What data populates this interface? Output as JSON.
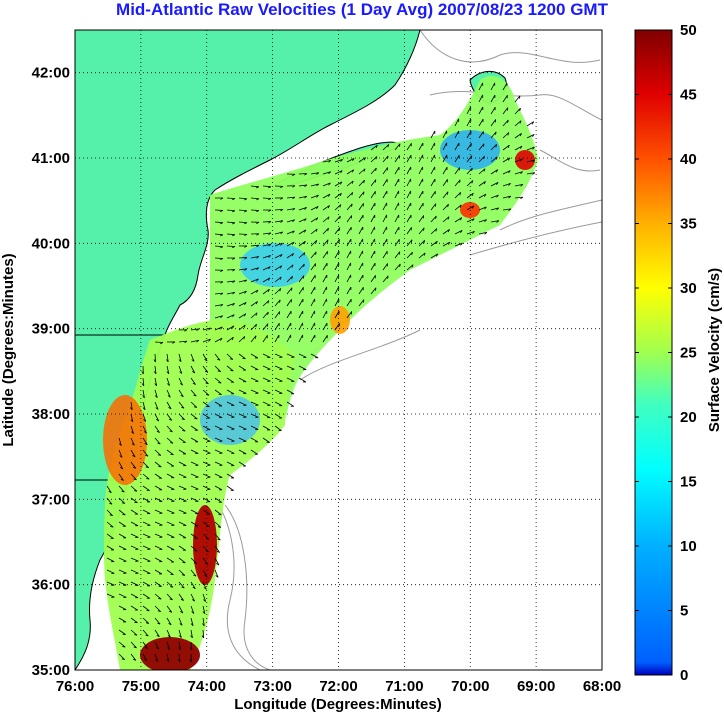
{
  "title": "Mid-Atlantic Raw Velocities (1 Day Avg) 2007/08/23 1200 GMT",
  "chart_data": {
    "type": "heatmap",
    "title": "Mid-Atlantic Raw Velocities (1 Day Avg) 2007/08/23 1200 GMT",
    "xlabel": "Longitude (Degrees:Minutes)",
    "ylabel": "Latitude (Degrees:Minutes)",
    "x_ticks": [
      "76:00",
      "75:00",
      "74:00",
      "73:00",
      "72:00",
      "71:00",
      "70:00",
      "69:00",
      "68:00"
    ],
    "y_ticks": [
      "35:00",
      "36:00",
      "37:00",
      "38:00",
      "39:00",
      "40:00",
      "41:00",
      "42:00"
    ],
    "x_range": [
      -76,
      -68
    ],
    "y_range": [
      35,
      42.5
    ],
    "grid": true,
    "colorbar": {
      "label": "Surface Velocity (cm/s)",
      "ticks": [
        "0",
        "5",
        "10",
        "15",
        "20",
        "25",
        "30",
        "35",
        "40",
        "45",
        "50"
      ],
      "range": [
        0,
        50
      ],
      "colormap": "jet"
    },
    "colors": {
      "land": "#55f0aa",
      "coast": "#000000",
      "bathymetry": "#999999",
      "title": "#1a1aff"
    }
  }
}
